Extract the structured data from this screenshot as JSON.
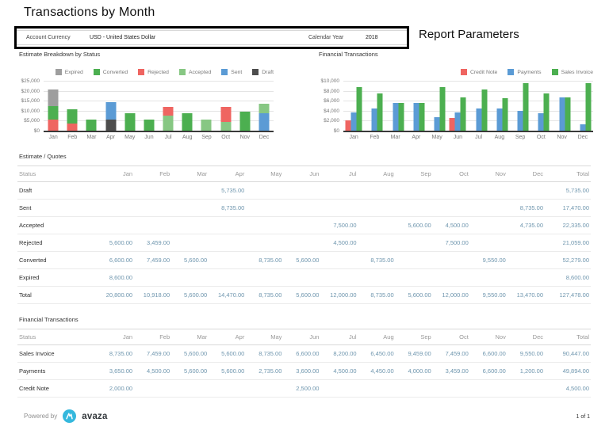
{
  "title": "Transactions by Month",
  "report_parameters": {
    "heading": "Report Parameters",
    "fields": [
      {
        "label": "Account Currency",
        "value": "USD - United States Dollar"
      },
      {
        "label": "Calendar Year",
        "value": "2018"
      }
    ]
  },
  "months": [
    "Jan",
    "Feb",
    "Mar",
    "Apr",
    "May",
    "Jun",
    "Jul",
    "Aug",
    "Sep",
    "Oct",
    "Nov",
    "Dec"
  ],
  "chart_data": [
    {
      "type": "bar",
      "variant": "stacked",
      "title": "Estimate Breakdown by Status",
      "categories": [
        "Jan",
        "Feb",
        "Mar",
        "Apr",
        "May",
        "Jun",
        "Jul",
        "Aug",
        "Sep",
        "Oct",
        "Nov",
        "Dec"
      ],
      "y_ticks": [
        "$25,000",
        "$20,000",
        "$15,000",
        "$10,000",
        "$5,000",
        "$0"
      ],
      "ylim": [
        0,
        25000
      ],
      "grid": true,
      "legend_position": "top-right",
      "legend": [
        "Expired",
        "Converted",
        "Rejected",
        "Accepted",
        "Sent",
        "Draft"
      ],
      "series": [
        {
          "name": "Draft",
          "color": "#4d4d4d",
          "values": [
            0,
            0,
            0,
            5735,
            0,
            0,
            0,
            0,
            0,
            0,
            0,
            0
          ]
        },
        {
          "name": "Sent",
          "color": "#5b9bd5",
          "values": [
            0,
            0,
            0,
            8735,
            0,
            0,
            0,
            0,
            0,
            0,
            0,
            8735
          ]
        },
        {
          "name": "Accepted",
          "color": "#87c783",
          "values": [
            0,
            0,
            0,
            0,
            0,
            0,
            7500,
            0,
            5600,
            4500,
            0,
            4735
          ]
        },
        {
          "name": "Rejected",
          "color": "#ef6561",
          "values": [
            5600,
            3459,
            0,
            0,
            0,
            0,
            4500,
            0,
            0,
            7500,
            0,
            0
          ]
        },
        {
          "name": "Converted",
          "color": "#4caf50",
          "values": [
            6600,
            7459,
            5600,
            0,
            8735,
            5600,
            0,
            8735,
            0,
            0,
            9550,
            0
          ]
        },
        {
          "name": "Expired",
          "color": "#9e9e9e",
          "values": [
            8600,
            0,
            0,
            0,
            0,
            0,
            0,
            0,
            0,
            0,
            0,
            0
          ]
        }
      ]
    },
    {
      "type": "bar",
      "variant": "grouped",
      "title": "Financial Transactions",
      "categories": [
        "Jan",
        "Feb",
        "Mar",
        "Apr",
        "May",
        "Jun",
        "Jul",
        "Aug",
        "Sep",
        "Oct",
        "Nov",
        "Dec"
      ],
      "y_ticks": [
        "$10,000",
        "$8,000",
        "$6,000",
        "$4,000",
        "$2,000",
        "$0"
      ],
      "ylim": [
        0,
        10000
      ],
      "grid": true,
      "legend_position": "top-right",
      "legend": [
        "Credit Note",
        "Payments",
        "Sales Invoice"
      ],
      "series": [
        {
          "name": "Credit Note",
          "color": "#ef6561",
          "values": [
            2000,
            0,
            0,
            0,
            0,
            2500,
            0,
            0,
            0,
            0,
            0,
            0
          ]
        },
        {
          "name": "Payments",
          "color": "#5b9bd5",
          "values": [
            3650,
            4500,
            5600,
            5600,
            2735,
            3600,
            4500,
            4450,
            4000,
            3459,
            6600,
            1200
          ]
        },
        {
          "name": "Sales Invoice",
          "color": "#4caf50",
          "values": [
            8735,
            7459,
            5600,
            5600,
            8735,
            6600,
            8200,
            6450,
            9459,
            7459,
            6600,
            9550
          ]
        }
      ]
    }
  ],
  "tables": [
    {
      "title": "Estimate / Quotes",
      "columns": [
        "Status",
        "Jan",
        "Feb",
        "Mar",
        "Apr",
        "May",
        "Jun",
        "Jul",
        "Aug",
        "Sep",
        "Oct",
        "Nov",
        "Dec",
        "Total"
      ],
      "rows": [
        {
          "label": "Draft",
          "values": [
            "",
            "",
            "",
            "5,735.00",
            "",
            "",
            "",
            "",
            "",
            "",
            "",
            "",
            "5,735.00"
          ]
        },
        {
          "label": "Sent",
          "values": [
            "",
            "",
            "",
            "8,735.00",
            "",
            "",
            "",
            "",
            "",
            "",
            "",
            "8,735.00",
            "17,470.00"
          ]
        },
        {
          "label": "Accepted",
          "values": [
            "",
            "",
            "",
            "",
            "",
            "",
            "7,500.00",
            "",
            "5,600.00",
            "4,500.00",
            "",
            "4,735.00",
            "22,335.00"
          ]
        },
        {
          "label": "Rejected",
          "values": [
            "5,600.00",
            "3,459.00",
            "",
            "",
            "",
            "",
            "4,500.00",
            "",
            "",
            "7,500.00",
            "",
            "",
            "21,059.00"
          ]
        },
        {
          "label": "Converted",
          "values": [
            "6,600.00",
            "7,459.00",
            "5,600.00",
            "",
            "8,735.00",
            "5,600.00",
            "",
            "8,735.00",
            "",
            "",
            "9,550.00",
            "",
            "52,279.00"
          ]
        },
        {
          "label": "Expired",
          "values": [
            "8,600.00",
            "",
            "",
            "",
            "",
            "",
            "",
            "",
            "",
            "",
            "",
            "",
            "8,600.00"
          ]
        },
        {
          "label": "Total",
          "values": [
            "20,800.00",
            "10,918.00",
            "5,600.00",
            "14,470.00",
            "8,735.00",
            "5,600.00",
            "12,000.00",
            "8,735.00",
            "5,600.00",
            "12,000.00",
            "9,550.00",
            "13,470.00",
            "127,478.00"
          ]
        }
      ]
    },
    {
      "title": "Financial Transactions",
      "columns": [
        "Status",
        "Jan",
        "Feb",
        "Mar",
        "Apr",
        "May",
        "Jun",
        "Jul",
        "Aug",
        "Sep",
        "Oct",
        "Nov",
        "Dec",
        "Total"
      ],
      "rows": [
        {
          "label": "Sales Invoice",
          "values": [
            "8,735.00",
            "7,459.00",
            "5,600.00",
            "5,600.00",
            "8,735.00",
            "6,600.00",
            "8,200.00",
            "6,450.00",
            "9,459.00",
            "7,459.00",
            "6,600.00",
            "9,550.00",
            "90,447.00"
          ]
        },
        {
          "label": "Payments",
          "values": [
            "3,650.00",
            "4,500.00",
            "5,600.00",
            "5,600.00",
            "2,735.00",
            "3,600.00",
            "4,500.00",
            "4,450.00",
            "4,000.00",
            "3,459.00",
            "6,600.00",
            "1,200.00",
            "49,894.00"
          ]
        },
        {
          "label": "Credit Note",
          "values": [
            "2,000.00",
            "",
            "",
            "",
            "",
            "2,500.00",
            "",
            "",
            "",
            "",
            "",
            "",
            "4,500.00"
          ]
        }
      ]
    }
  ],
  "footer": {
    "powered_by": "Powered by",
    "brand": "avaza",
    "page": "1 of 1"
  },
  "colors": {
    "accent_blue_text": "#6f96ae",
    "logo_cyan": "#35b8dd",
    "axis_line": "#3a3a3a"
  }
}
